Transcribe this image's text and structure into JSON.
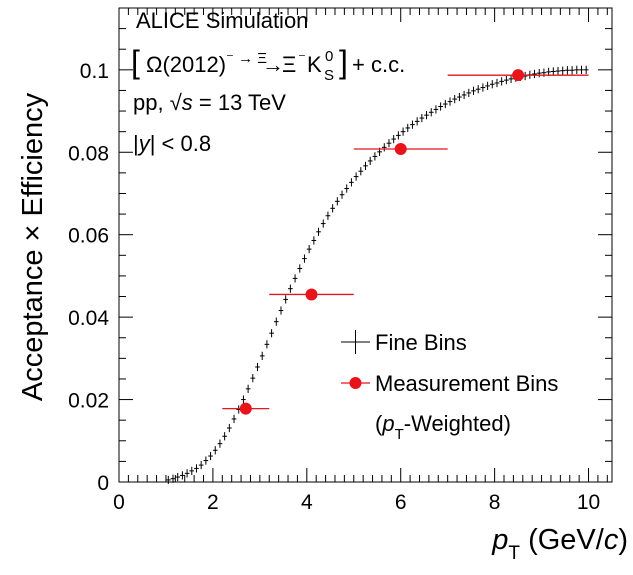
{
  "colors": {
    "axis": "#000000",
    "fine": "#000000",
    "measurement": "#e8141b",
    "background": "#ffffff"
  },
  "chart_data": {
    "type": "scatter",
    "xlabel": {
      "var": "p",
      "sub": "T",
      "unit_prefix": " (GeV/",
      "unit_var": "c",
      "unit_suffix": ")"
    },
    "ylabel": "Acceptance × Efficiency",
    "xlim": [
      0,
      10.5
    ],
    "ylim": [
      0,
      0.115
    ],
    "xticks": [
      "0",
      "2",
      "4",
      "6",
      "8",
      "10"
    ],
    "yticks": [
      "0",
      "0.02",
      "0.04",
      "0.06",
      "0.08",
      "0.1"
    ],
    "grid": false,
    "annotations": {
      "line1": "ALICE Simulation",
      "line2_a": "Ω(2012)",
      "line2_b": "⁻ → Ξ",
      "line2_c": "⁻",
      "line2_d": "K",
      "line2_sup": "0",
      "line2_sub": "S",
      "line2_e": " + c.c.",
      "line3_a": "pp, ",
      "line3_b": "√",
      "line3_c": "s",
      "line3_d": " = 13 TeV",
      "line4_a": "|",
      "line4_b": "y",
      "line4_c": "| < 0.8"
    },
    "legend": {
      "position": "bottom-right",
      "fine_label": "Fine Bins",
      "meas_label": "Measurement Bins",
      "meas_note_a": "(",
      "meas_note_b": "p",
      "meas_note_sub": "T",
      "meas_note_c": "-Weighted)"
    },
    "series": [
      {
        "name": "Fine Bins",
        "bin_width": 0.1,
        "x": [
          1.05,
          1.15,
          1.25,
          1.35,
          1.45,
          1.55,
          1.65,
          1.75,
          1.85,
          1.95,
          2.05,
          2.15,
          2.25,
          2.35,
          2.45,
          2.55,
          2.65,
          2.75,
          2.85,
          2.95,
          3.05,
          3.15,
          3.25,
          3.35,
          3.45,
          3.55,
          3.65,
          3.75,
          3.85,
          3.95,
          4.05,
          4.15,
          4.25,
          4.35,
          4.45,
          4.55,
          4.65,
          4.75,
          4.85,
          4.95,
          5.05,
          5.15,
          5.25,
          5.35,
          5.45,
          5.55,
          5.65,
          5.75,
          5.85,
          5.95,
          6.05,
          6.15,
          6.25,
          6.35,
          6.45,
          6.55,
          6.65,
          6.75,
          6.85,
          6.95,
          7.05,
          7.15,
          7.25,
          7.35,
          7.45,
          7.55,
          7.65,
          7.75,
          7.85,
          7.95,
          8.05,
          8.15,
          8.25,
          8.35,
          8.45,
          8.55,
          8.65,
          8.75,
          8.85,
          8.95,
          9.05,
          9.15,
          9.25,
          9.35,
          9.45,
          9.55,
          9.65,
          9.75,
          9.85,
          9.95
        ],
        "y": [
          0.0005,
          0.0008,
          0.0012,
          0.0016,
          0.0021,
          0.0027,
          0.0033,
          0.0041,
          0.0052,
          0.0063,
          0.0077,
          0.0093,
          0.0111,
          0.0131,
          0.0153,
          0.0176,
          0.02,
          0.0226,
          0.0252,
          0.0279,
          0.0306,
          0.0334,
          0.0361,
          0.0389,
          0.0416,
          0.0443,
          0.0469,
          0.0494,
          0.0518,
          0.0542,
          0.0565,
          0.0586,
          0.0607,
          0.0627,
          0.0646,
          0.0664,
          0.0681,
          0.0697,
          0.0712,
          0.0727,
          0.0741,
          0.0754,
          0.0767,
          0.0779,
          0.079,
          0.0801,
          0.0812,
          0.0822,
          0.0832,
          0.0841,
          0.085,
          0.0859,
          0.0867,
          0.0875,
          0.0883,
          0.089,
          0.0897,
          0.0904,
          0.0911,
          0.0917,
          0.0923,
          0.0929,
          0.0934,
          0.0939,
          0.0944,
          0.0949,
          0.0953,
          0.0957,
          0.0961,
          0.0965,
          0.0968,
          0.0972,
          0.0975,
          0.0978,
          0.0981,
          0.0983,
          0.0985,
          0.0988,
          0.099,
          0.0992,
          0.0993,
          0.0995,
          0.0996,
          0.0997,
          0.0998,
          0.0999,
          0.0999,
          0.1,
          0.1,
          0.1
        ],
        "yerr": 0.001
      },
      {
        "name": "Measurement Bins",
        "x": [
          2.7,
          4.1,
          6.0,
          8.5
        ],
        "xerr_low": [
          2.2,
          3.2,
          5.0,
          7.0
        ],
        "xerr_high": [
          3.2,
          5.0,
          7.0,
          10.0
        ],
        "y": [
          0.0178,
          0.0455,
          0.0808,
          0.0987
        ]
      }
    ]
  }
}
